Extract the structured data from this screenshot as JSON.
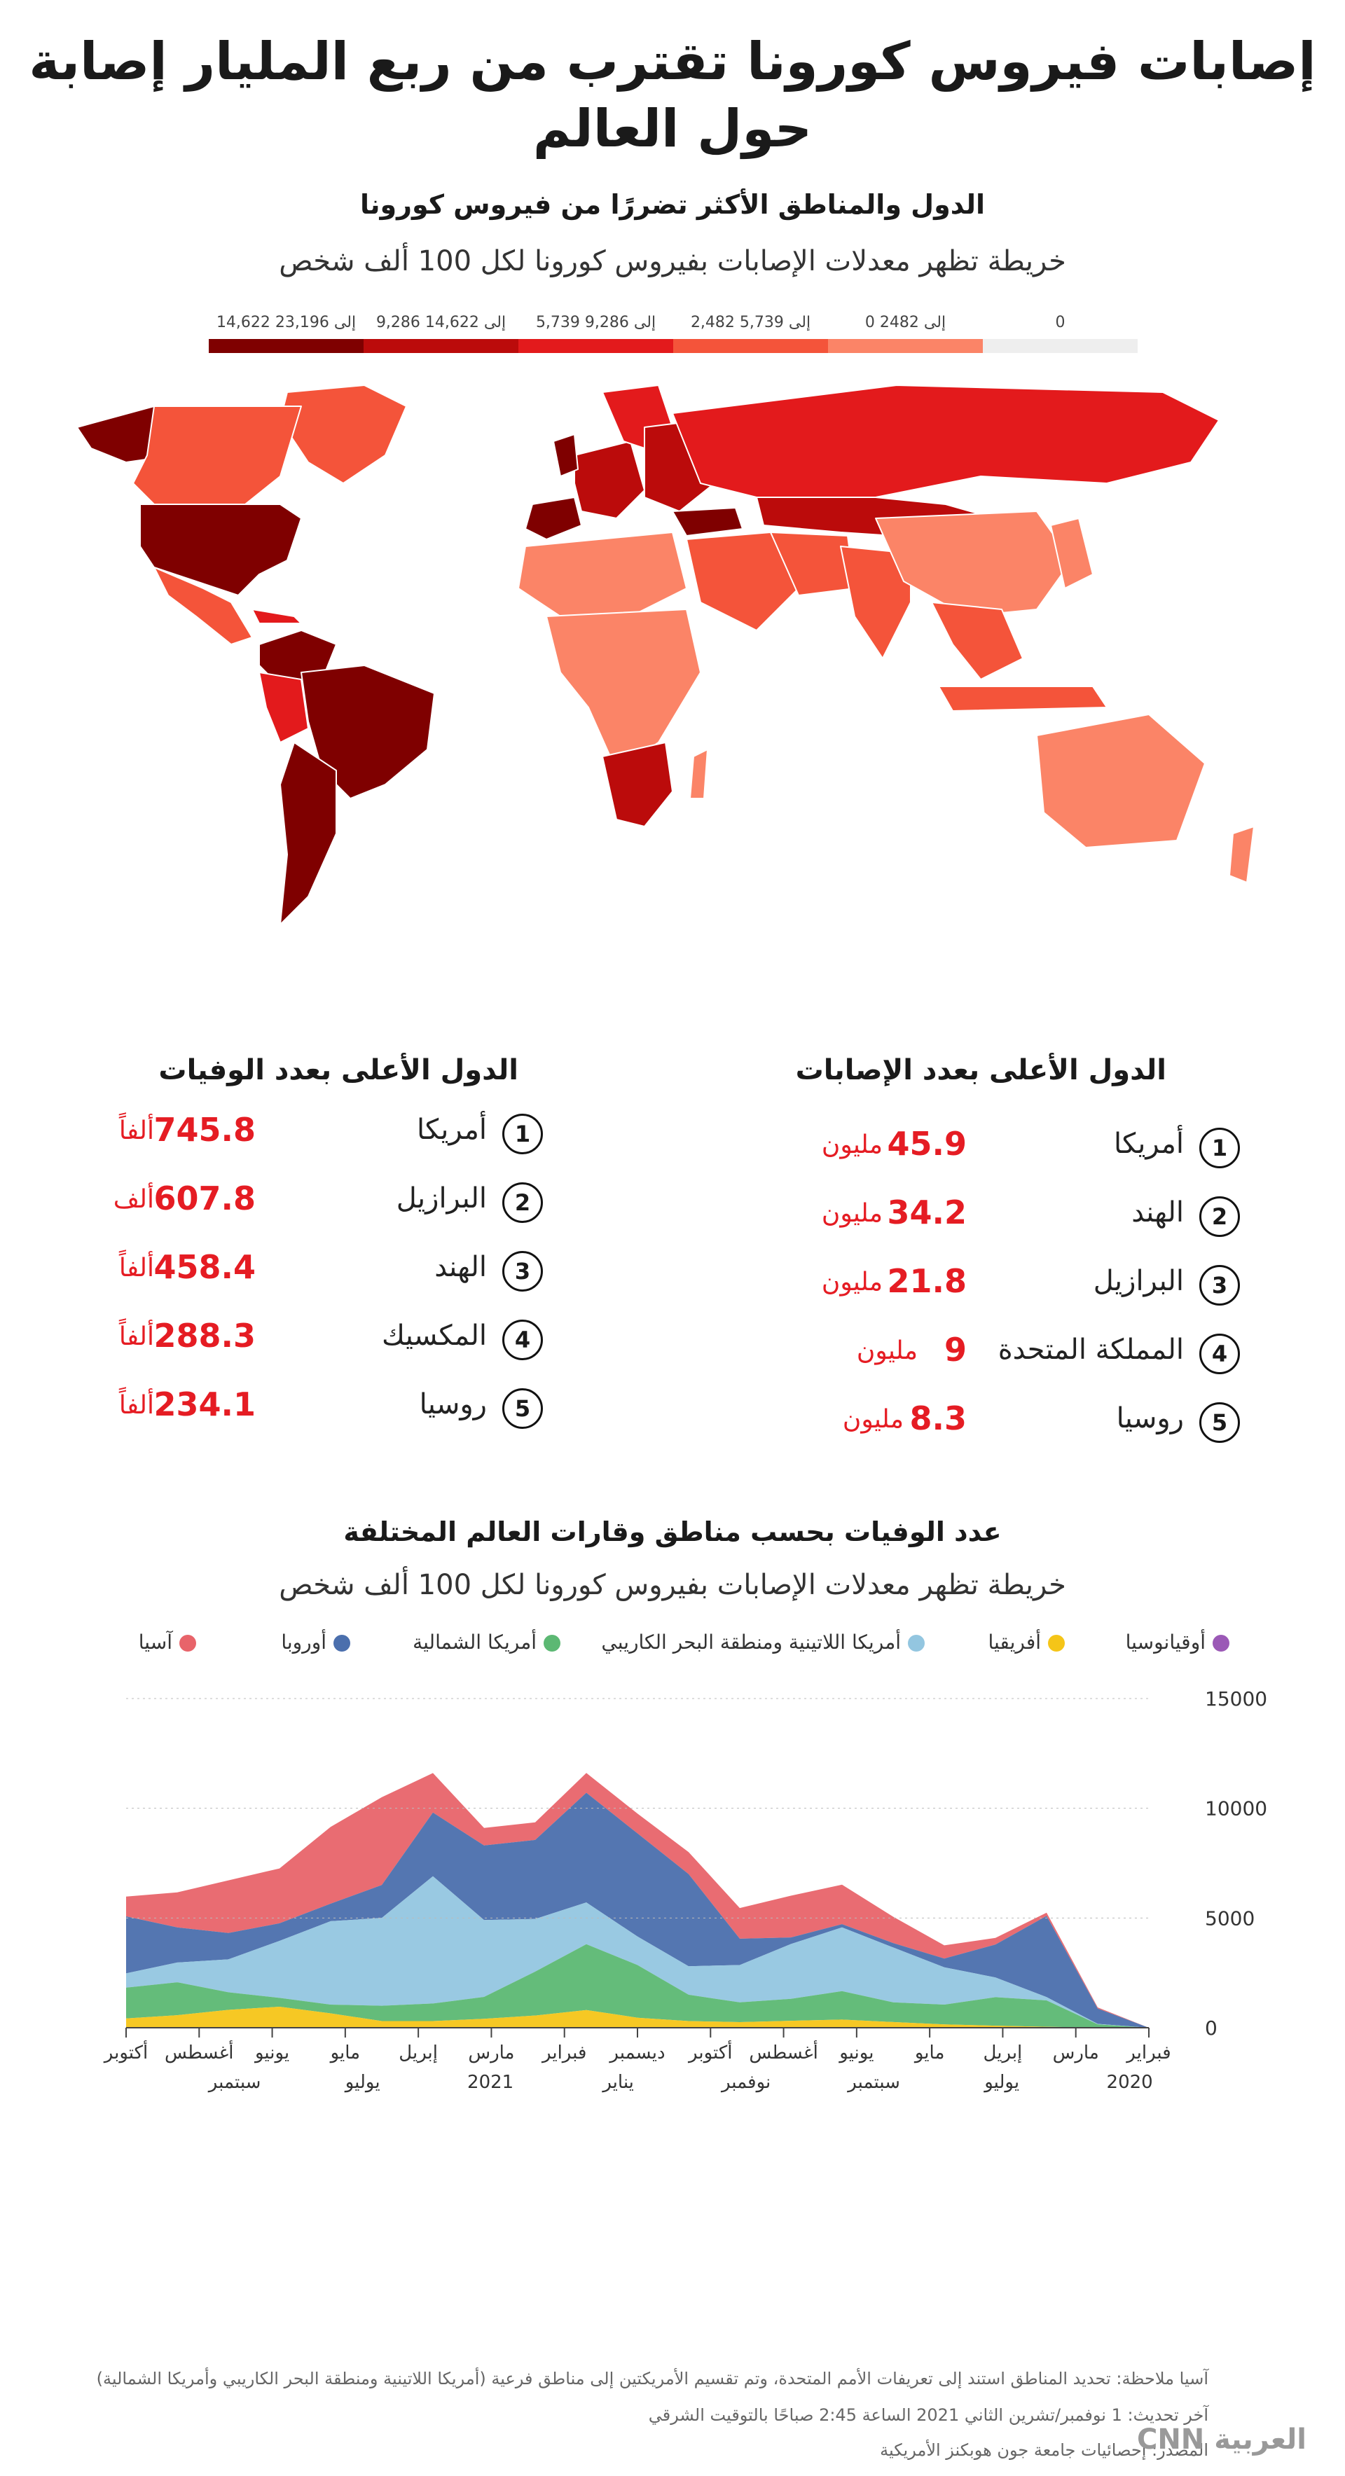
{
  "title_line1": "إصابات فيروس كورونا تقترب من ربع المليار إصابة",
  "title_line2": "حول العالم",
  "map": {
    "title": "الدول والمناطق الأكثر تضررًا من فيروس كورونا",
    "subtitle": "خريطة تظهر معدلات الإصابات بفيروس كورونا لكل 100 ألف شخص",
    "legend": [
      {
        "label": "0",
        "color": "#eeeeee"
      },
      {
        "label": "0 إلى 2482",
        "color": "#fb8467"
      },
      {
        "label": "2,482 إلى 5,739",
        "color": "#f4543a"
      },
      {
        "label": "5,739 إلى 9,286",
        "color": "#e31a1c"
      },
      {
        "label": "9,286 إلى 14,622",
        "color": "#bb0b0b"
      },
      {
        "label": "14,622 إلى 23,196",
        "color": "#7f0000"
      }
    ]
  },
  "cases": {
    "title": "الدول الأعلى بعدد الإصابات",
    "rows": [
      {
        "rank": "1",
        "country": "أمريكا",
        "value": "45.9",
        "unit": "مليون"
      },
      {
        "rank": "2",
        "country": "الهند",
        "value": "34.2",
        "unit": "مليون"
      },
      {
        "rank": "3",
        "country": "البرازيل",
        "value": "21.8",
        "unit": "مليون"
      },
      {
        "rank": "4",
        "country": "المملكة المتحدة",
        "value": "9",
        "unit": "مليون"
      },
      {
        "rank": "5",
        "country": "روسيا",
        "value": "8.3",
        "unit": "مليون"
      }
    ]
  },
  "deaths": {
    "title": "الدول الأعلى بعدد الوفيات",
    "rows": [
      {
        "rank": "1",
        "country": "أمريكا",
        "value": "745.8",
        "unit": "ألفاً"
      },
      {
        "rank": "2",
        "country": "البرازيل",
        "value": "607.8",
        "unit": "ألف"
      },
      {
        "rank": "3",
        "country": "الهند",
        "value": "458.4",
        "unit": "ألفاً"
      },
      {
        "rank": "4",
        "country": "المكسيك",
        "value": "288.3",
        "unit": "ألفاً"
      },
      {
        "rank": "5",
        "country": "روسيا",
        "value": "234.1",
        "unit": "ألفاً"
      }
    ]
  },
  "chart_data": {
    "type": "area",
    "title": "عدد الوفيات بحسب مناطق وقارات العالم المختلفة",
    "subtitle": "خريطة تظهر معدلات الإصابات بفيروس كورونا لكل 100 ألف شخص",
    "stacked": true,
    "ylim": [
      0,
      15000
    ],
    "yticks": [
      "0",
      "5000",
      "10000",
      "15000"
    ],
    "xticks_upper": [
      "فبراير",
      "مارس",
      "إبريل",
      "مايو",
      "يونيو",
      "أغسطس",
      "أكتوبر",
      "ديسمبر",
      "فبراير",
      "مارس",
      "إبريل",
      "مايو",
      "يونيو",
      "أغسطس",
      "أكتوبر"
    ],
    "xticks_lower": [
      "2020",
      "يوليو",
      "سبتمبر",
      "نوفمبر",
      "يناير",
      "2021",
      "يوليو",
      "سبتمبر"
    ],
    "x": [
      "2020-02",
      "2020-03",
      "2020-04",
      "2020-05",
      "2020-06",
      "2020-07",
      "2020-08",
      "2020-09",
      "2020-10",
      "2020-11",
      "2020-12",
      "2021-01",
      "2021-02",
      "2021-03",
      "2021-04",
      "2021-05",
      "2021-06",
      "2021-07",
      "2021-08",
      "2021-09",
      "2021-10"
    ],
    "series": [
      {
        "name": "أوقيانوسيا",
        "color": "#9b59b6",
        "values": [
          0,
          0,
          5,
          3,
          2,
          8,
          20,
          15,
          5,
          3,
          5,
          8,
          6,
          4,
          3,
          2,
          3,
          8,
          15,
          20,
          25
        ]
      },
      {
        "name": "أفريقيا",
        "color": "#f5c518",
        "values": [
          0,
          5,
          40,
          90,
          150,
          250,
          350,
          300,
          250,
          300,
          450,
          800,
          550,
          400,
          300,
          300,
          650,
          950,
          800,
          550,
          400
        ]
      },
      {
        "name": "أمريكا الشمالية",
        "color": "#5cb873",
        "values": [
          0,
          150,
          1200,
          1300,
          900,
          900,
          1300,
          1000,
          900,
          1200,
          2400,
          3000,
          2000,
          1000,
          800,
          700,
          400,
          400,
          800,
          1500,
          1400
        ]
      },
      {
        "name": "أمريكا اللاتينية ومنطقة البحر الكاريبي",
        "color": "#93c6e0",
        "values": [
          0,
          20,
          150,
          900,
          1700,
          2500,
          2900,
          2500,
          1700,
          1300,
          1300,
          1900,
          2400,
          3500,
          5800,
          4000,
          3800,
          2600,
          1500,
          900,
          650
        ]
      },
      {
        "name": "أوروبا",
        "color": "#4b6fad",
        "values": [
          0,
          700,
          3700,
          1500,
          400,
          200,
          150,
          300,
          1200,
          4200,
          4700,
          5000,
          3600,
          3400,
          2900,
          1500,
          800,
          800,
          1200,
          1600,
          2600
        ]
      },
      {
        "name": "آسيا",
        "color": "#e8646a",
        "values": [
          0,
          50,
          150,
          300,
          600,
          1200,
          1800,
          1900,
          1400,
          1000,
          900,
          900,
          800,
          800,
          1800,
          4000,
          3500,
          2500,
          2400,
          1600,
          900
        ]
      }
    ]
  },
  "chart_legend_order": [
    {
      "name": "آسيا",
      "color": "#e8646a"
    },
    {
      "name": "أوروبا",
      "color": "#4b6fad"
    },
    {
      "name": "أمريكا الشمالية",
      "color": "#5cb873"
    },
    {
      "name": "أمريكا اللاتينية ومنطقة البحر الكاريبي",
      "color": "#93c6e0"
    },
    {
      "name": "أفريقيا",
      "color": "#f5c518"
    },
    {
      "name": "أوقيانوسيا",
      "color": "#9b59b6"
    }
  ],
  "notes": {
    "note": "ملاحظة: تحديد المناطق استند إلى تعريفات الأمم المتحدة، وتم تقسيم الأمريكتين إلى مناطق فرعية (أمريكا اللاتينية ومنطقة البحر الكاريبي وأمريكا الشمالية)",
    "note_prefix": "آسيا",
    "updated": "آخر تحديث: 1 نوفمبر/تشرين الثاني 2021 الساعة 2:45 صباحًا بالتوقيت الشرقي",
    "source": "المصدر: إحصائيات جامعة جون هوبكنز الأمريكية",
    "logo": "CNN العربية"
  }
}
